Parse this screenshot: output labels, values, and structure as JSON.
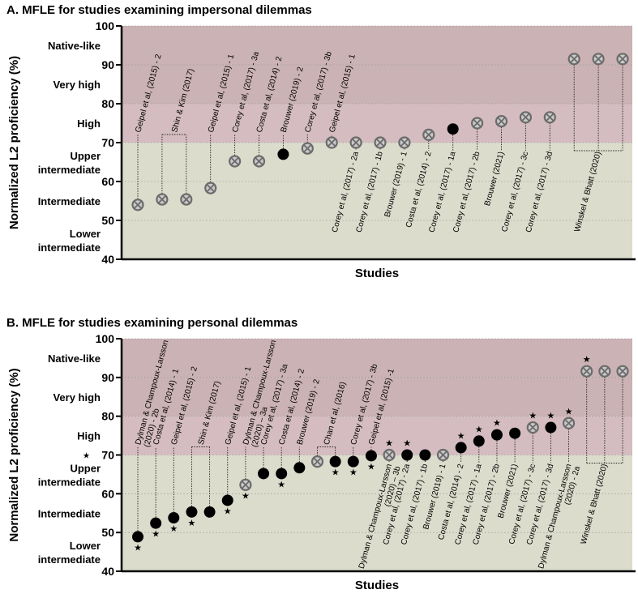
{
  "colors": {
    "band_high": "#cbb2b4",
    "band_high_light": "#d4bcc0",
    "band_low": "#dcdccc",
    "filled": "#000000",
    "cross_fill": "#c9c9c9",
    "cross_stroke": "#6b6b6b"
  },
  "chart_data": [
    {
      "type": "scatter",
      "title": "A. MFLE for studies examining impersonal dilemmas",
      "xlabel": "Studies",
      "ylabel": "Normalized L2 proficiency (%)",
      "ylim": [
        40,
        100
      ],
      "yticks": [
        "40",
        "50",
        "60",
        "70",
        "80",
        "90",
        "100"
      ],
      "bands": [
        {
          "label": "Native-like",
          "range": [
            90,
            100
          ]
        },
        {
          "label": "Very high",
          "range": [
            80,
            90
          ]
        },
        {
          "label": "High",
          "range": [
            70,
            80
          ]
        },
        {
          "label": "Upper\nintermediate",
          "range": [
            60,
            70
          ]
        },
        {
          "label": "Intermediate",
          "range": [
            50,
            60
          ]
        },
        {
          "label": "Lower\nintermediate",
          "range": [
            40,
            50
          ]
        }
      ],
      "star_marker_on_axis": false,
      "points": [
        {
          "y": 54,
          "marker": "cross"
        },
        {
          "y": 55.4,
          "marker": "cross"
        },
        {
          "y": 55.4,
          "marker": "cross"
        },
        {
          "y": 58.3,
          "marker": "cross"
        },
        {
          "y": 65.2,
          "marker": "cross"
        },
        {
          "y": 65.2,
          "marker": "cross"
        },
        {
          "y": 67,
          "marker": "filled"
        },
        {
          "y": 68.5,
          "marker": "cross"
        },
        {
          "y": 70,
          "marker": "cross"
        },
        {
          "y": 70,
          "marker": "cross"
        },
        {
          "y": 70,
          "marker": "cross"
        },
        {
          "y": 70,
          "marker": "cross"
        },
        {
          "y": 72,
          "marker": "cross"
        },
        {
          "y": 73.5,
          "marker": "filled"
        },
        {
          "y": 75,
          "marker": "cross"
        },
        {
          "y": 75.5,
          "marker": "cross"
        },
        {
          "y": 76.5,
          "marker": "cross"
        },
        {
          "y": 76.5,
          "marker": "cross"
        },
        {
          "y": 91.5,
          "marker": "cross"
        },
        {
          "y": 91.5,
          "marker": "cross"
        },
        {
          "y": 91.5,
          "marker": "cross"
        }
      ],
      "labels": [
        {
          "text": "Geipel et al, (2015) - 2",
          "points": [
            0
          ],
          "side": "above"
        },
        {
          "text": "Shin & Kim (2017)",
          "points": [
            1,
            2
          ],
          "side": "above"
        },
        {
          "text": "Geipel et al, (2015) - 1",
          "points": [
            3
          ],
          "side": "above"
        },
        {
          "text": "Corey et al, (2017) - 3a",
          "points": [
            4
          ],
          "side": "above"
        },
        {
          "text": "Costa et al, (2014) - 2",
          "points": [
            5
          ],
          "side": "above"
        },
        {
          "text": "Brouwer (2019) - 2",
          "points": [
            6
          ],
          "side": "above"
        },
        {
          "text": "Corey et al, (2017) - 3b",
          "points": [
            7
          ],
          "side": "above"
        },
        {
          "text": "Geipel et al, (2015) - 1",
          "points": [
            8
          ],
          "side": "above"
        },
        {
          "text": "Corey et al, (2017) - 2a",
          "points": [
            9
          ],
          "side": "below"
        },
        {
          "text": "Corey et al, (2017) - 1b",
          "points": [
            10
          ],
          "side": "below"
        },
        {
          "text": "Brouwer (2019) - 1",
          "points": [
            11
          ],
          "side": "below"
        },
        {
          "text": "Costa et al, (2014) - 2",
          "points": [
            12
          ],
          "side": "below"
        },
        {
          "text": "Corey et al, (2017) - 1a",
          "points": [
            13
          ],
          "side": "below"
        },
        {
          "text": "Corey et al, (2017) - 2b",
          "points": [
            14
          ],
          "side": "below"
        },
        {
          "text": "Brouwer (2021)",
          "points": [
            15
          ],
          "side": "below"
        },
        {
          "text": "Corey et al, (2017) - 3c",
          "points": [
            16
          ],
          "side": "below"
        },
        {
          "text": "Corey et al, (2017) - 3d",
          "points": [
            17
          ],
          "side": "below"
        },
        {
          "text": "Winskel & Bhatt (2020)",
          "points": [
            18,
            19,
            20
          ],
          "side": "below"
        }
      ]
    },
    {
      "type": "scatter",
      "title": "B. MFLE for studies examining personal dilemmas",
      "xlabel": "Studies",
      "ylabel": "Normalized L2 proficiency (%)",
      "ylim": [
        40,
        100
      ],
      "yticks": [
        "40",
        "50",
        "60",
        "70",
        "80",
        "90",
        "100"
      ],
      "bands": [
        {
          "label": "Native-like",
          "range": [
            90,
            100
          ]
        },
        {
          "label": "Very high",
          "range": [
            80,
            90
          ]
        },
        {
          "label": "High",
          "range": [
            70,
            80
          ]
        },
        {
          "label": "Upper\nintermediate",
          "range": [
            60,
            70
          ]
        },
        {
          "label": "Intermediate",
          "range": [
            50,
            60
          ]
        },
        {
          "label": "Lower\nintermediate",
          "range": [
            40,
            50
          ]
        }
      ],
      "star_marker_on_axis": true,
      "points": [
        {
          "y": 48.9,
          "marker": "filled",
          "star": "below"
        },
        {
          "y": 52.4,
          "marker": "filled",
          "star": "below"
        },
        {
          "y": 53.8,
          "marker": "filled",
          "star": "below"
        },
        {
          "y": 55.3,
          "marker": "filled",
          "star": "below"
        },
        {
          "y": 55.3,
          "marker": "filled"
        },
        {
          "y": 58.3,
          "marker": "filled",
          "star": "below"
        },
        {
          "y": 62.3,
          "marker": "cross",
          "star": "below"
        },
        {
          "y": 65.2,
          "marker": "filled"
        },
        {
          "y": 65.2,
          "marker": "filled",
          "star": "below"
        },
        {
          "y": 66.7,
          "marker": "filled"
        },
        {
          "y": 68.3,
          "marker": "cross"
        },
        {
          "y": 68.3,
          "marker": "filled",
          "star": "below"
        },
        {
          "y": 68.3,
          "marker": "filled",
          "star": "below"
        },
        {
          "y": 69.8,
          "marker": "filled",
          "star": "below"
        },
        {
          "y": 70,
          "marker": "cross",
          "star": "above"
        },
        {
          "y": 70,
          "marker": "filled",
          "star": "above"
        },
        {
          "y": 70,
          "marker": "filled"
        },
        {
          "y": 70,
          "marker": "cross"
        },
        {
          "y": 71.9,
          "marker": "filled",
          "star": "above"
        },
        {
          "y": 73.6,
          "marker": "filled",
          "star": "above"
        },
        {
          "y": 75.2,
          "marker": "filled",
          "star": "above"
        },
        {
          "y": 75.6,
          "marker": "filled"
        },
        {
          "y": 77.1,
          "marker": "cross",
          "star": "above"
        },
        {
          "y": 77.1,
          "marker": "filled",
          "star": "above"
        },
        {
          "y": 78.2,
          "marker": "cross",
          "star": "above"
        },
        {
          "y": 91.6,
          "marker": "cross",
          "star": "above"
        },
        {
          "y": 91.6,
          "marker": "cross"
        },
        {
          "y": 91.6,
          "marker": "cross"
        }
      ],
      "labels": [
        {
          "text": "Dylman & Champoux-Larsson\n(2020) - 2b",
          "points": [
            0
          ],
          "side": "above"
        },
        {
          "text": "Costa et al, (2014) - 1",
          "points": [
            1
          ],
          "side": "above"
        },
        {
          "text": "Geipel et al, (2015) - 2",
          "points": [
            2
          ],
          "side": "above"
        },
        {
          "text": "Shin & Kim (2017)",
          "points": [
            3,
            4
          ],
          "side": "above"
        },
        {
          "text": "Geipel et al, (2015) - 1",
          "points": [
            5
          ],
          "side": "above"
        },
        {
          "text": "Dylman & Champoux-Larsson\n(2020) – 3a",
          "points": [
            6
          ],
          "side": "above"
        },
        {
          "text": "Corey et al, (2017) - 3a",
          "points": [
            7
          ],
          "side": "above"
        },
        {
          "text": "Costa et al, (2014) - 2",
          "points": [
            8
          ],
          "side": "above"
        },
        {
          "text": "Brouwer (2019) - 2",
          "points": [
            9
          ],
          "side": "above"
        },
        {
          "text": "Chan et al, (2016)",
          "points": [
            10,
            11
          ],
          "side": "above"
        },
        {
          "text": "Corey et al, (2017) - 3b",
          "points": [
            12
          ],
          "side": "above"
        },
        {
          "text": "Geipel et al, (2015) -1",
          "points": [
            13
          ],
          "side": "above"
        },
        {
          "text": "Dylman & Champoux-Larsson\n(2020) – 3b",
          "points": [
            14
          ],
          "side": "below"
        },
        {
          "text": "Corey et al, (2017) - 2a",
          "points": [
            15
          ],
          "side": "below"
        },
        {
          "text": "Corey et al, (2017) - 1b",
          "points": [
            16
          ],
          "side": "below"
        },
        {
          "text": "Brouwer (2019) - 1",
          "points": [
            17
          ],
          "side": "below"
        },
        {
          "text": "Costa et al, (2014) - 2",
          "points": [
            18
          ],
          "side": "below"
        },
        {
          "text": "Corey et al, (2017) - 1a",
          "points": [
            19
          ],
          "side": "below"
        },
        {
          "text": "Corey et al, (2017) - 2b",
          "points": [
            20
          ],
          "side": "below"
        },
        {
          "text": "Brouwer (2021)",
          "points": [
            21
          ],
          "side": "below"
        },
        {
          "text": "Corey et al, (2017) - 3c",
          "points": [
            22
          ],
          "side": "below"
        },
        {
          "text": "Corey et al, (2017) - 3d",
          "points": [
            23
          ],
          "side": "below"
        },
        {
          "text": "Dylman & Champoux-Larsson\n(2020) - 2a",
          "points": [
            24
          ],
          "side": "below"
        },
        {
          "text": "Winskel & Bhatt (2020)",
          "points": [
            25,
            26,
            27
          ],
          "side": "below"
        }
      ]
    }
  ]
}
